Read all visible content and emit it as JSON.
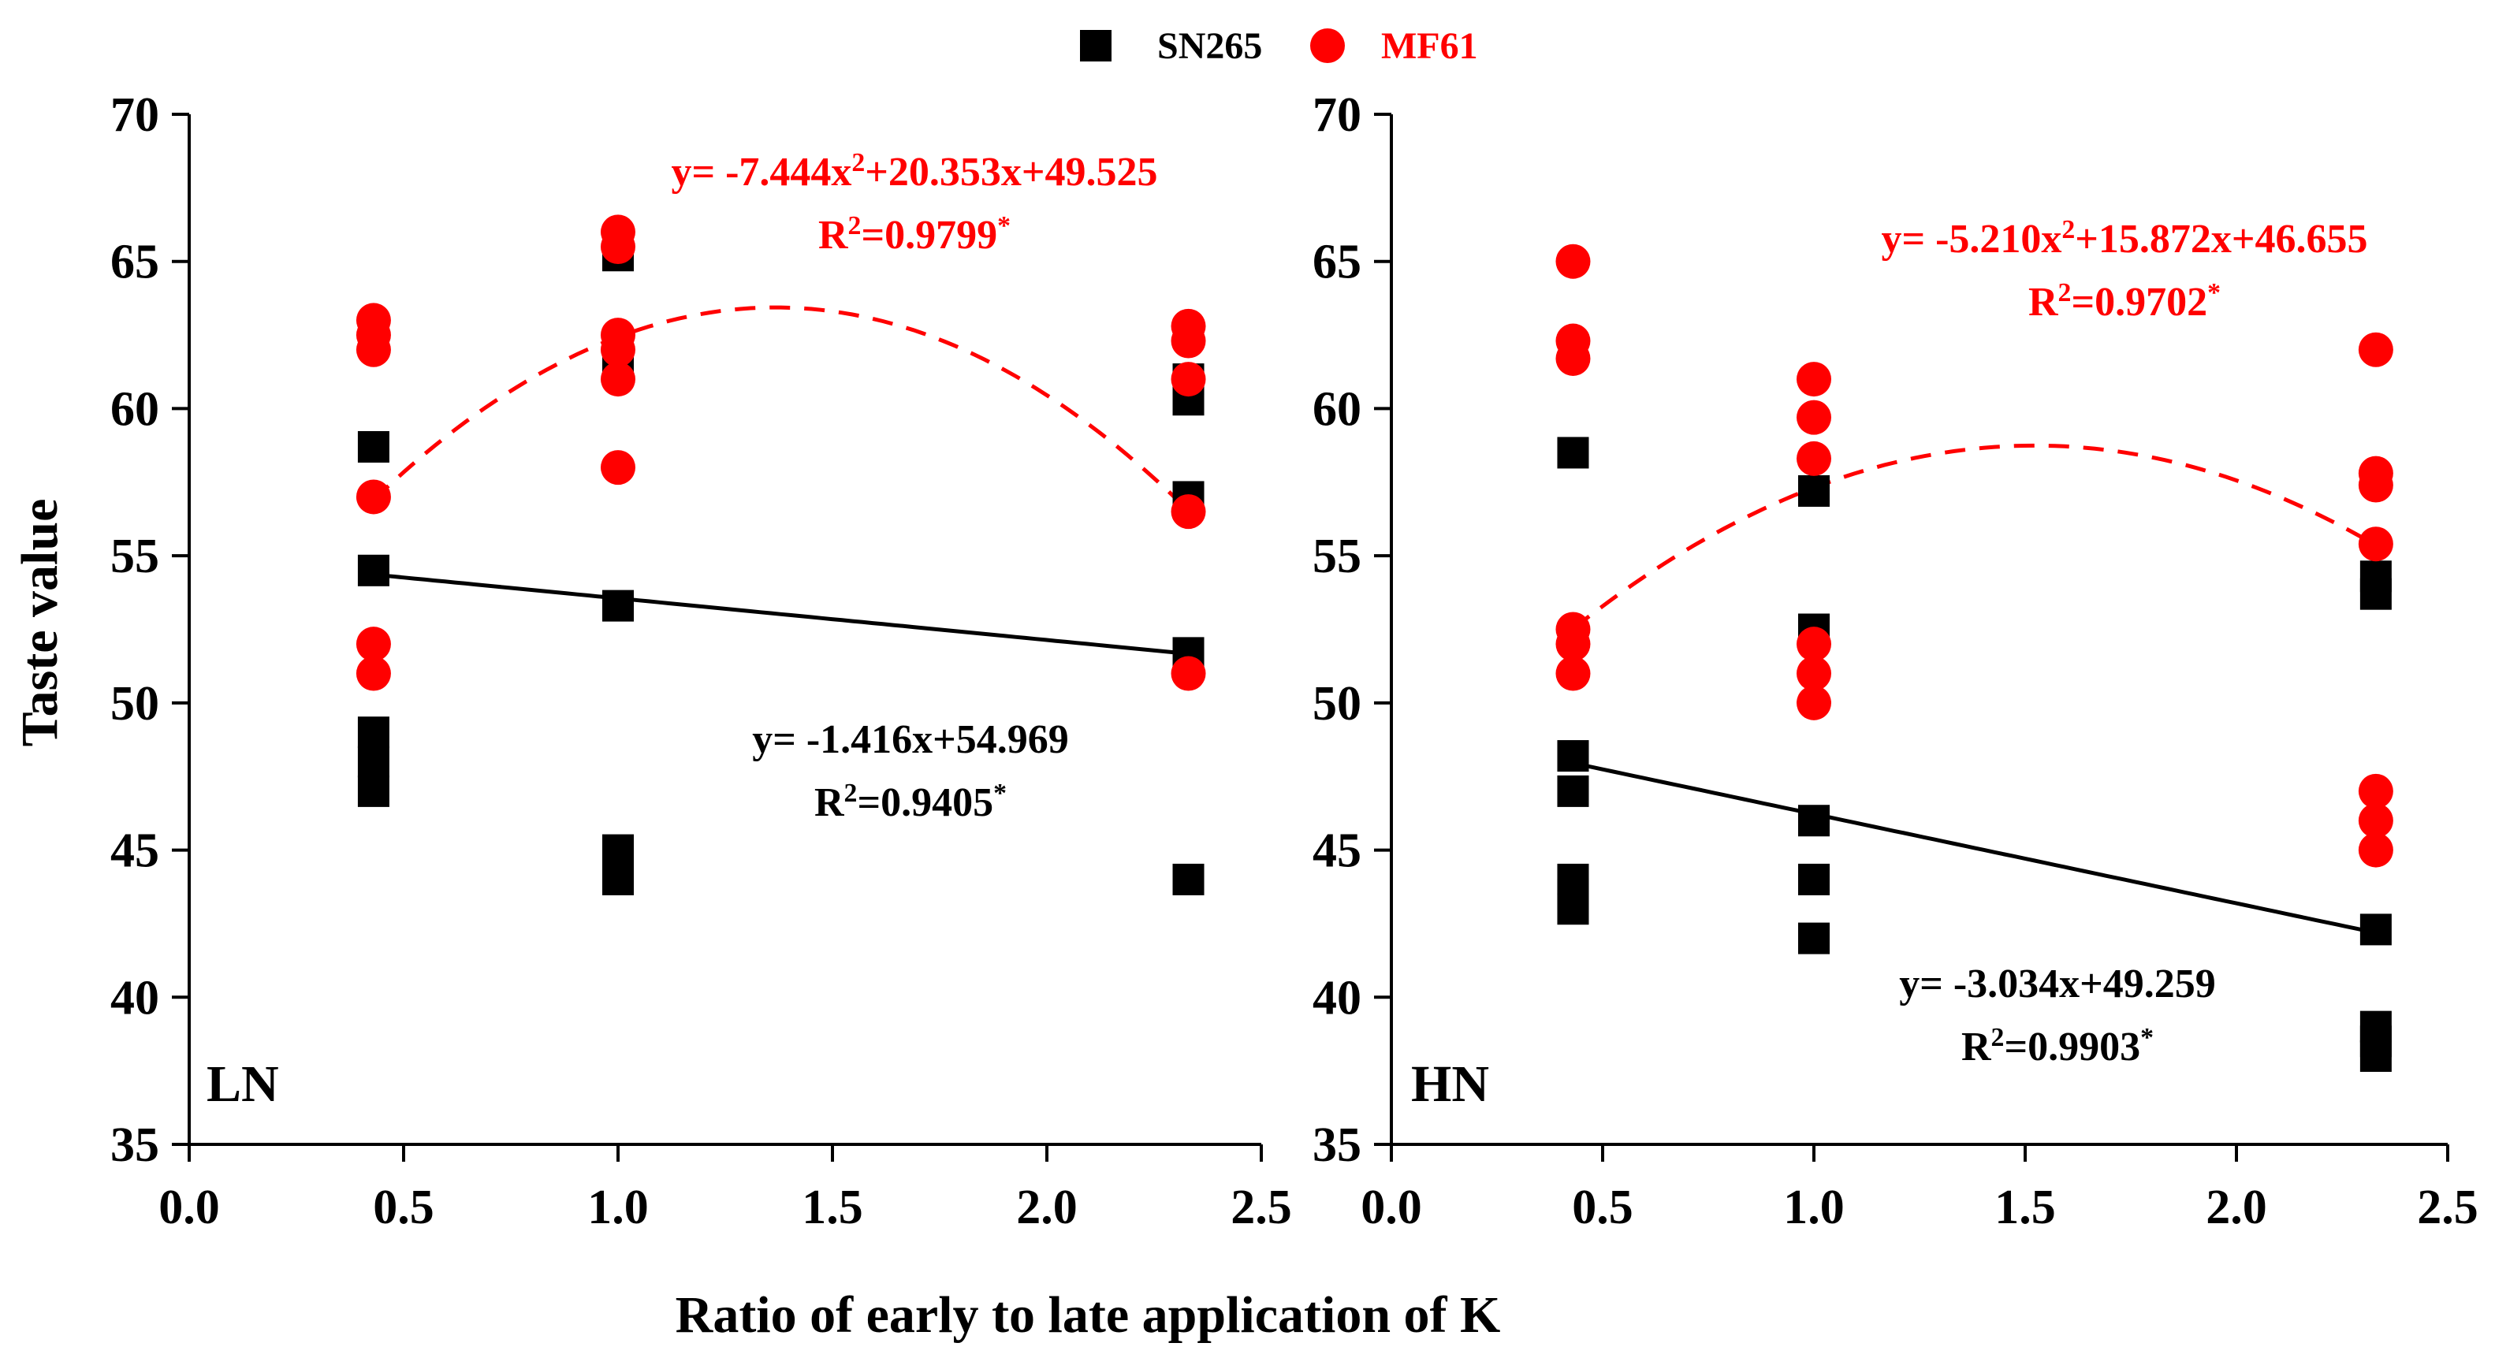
{
  "figure": {
    "xlabel": "Ratio of early to late application of K",
    "ylabel": "Taste value",
    "legend": [
      {
        "name": "SN265",
        "color": "#000000",
        "marker": "square"
      },
      {
        "name": "MF61",
        "color": "#ff0000",
        "marker": "circle"
      }
    ]
  },
  "chart_data": [
    {
      "type": "scatter",
      "panel": "LN",
      "xlim": [
        0.0,
        2.5
      ],
      "ylim": [
        35,
        70
      ],
      "xticks": [
        "0.0",
        "0.5",
        "1.0",
        "1.5",
        "2.0",
        "2.5"
      ],
      "yticks": [
        "35",
        "40",
        "45",
        "50",
        "55",
        "60",
        "65",
        "70"
      ],
      "xlabel": "Ratio of early to late application of K",
      "ylabel": "Taste value",
      "series": [
        {
          "name": "SN265",
          "color": "#000000",
          "marker": "square",
          "points": [
            [
              0.43,
              58.7
            ],
            [
              0.43,
              54.5
            ],
            [
              0.43,
              49.0
            ],
            [
              0.43,
              48.0
            ],
            [
              0.43,
              47.0
            ],
            [
              1.0,
              65.2
            ],
            [
              1.0,
              61.5
            ],
            [
              1.0,
              53.3
            ],
            [
              1.0,
              45.0
            ],
            [
              1.0,
              44.0
            ],
            [
              2.33,
              61.0
            ],
            [
              2.33,
              60.3
            ],
            [
              2.33,
              57.0
            ],
            [
              2.33,
              51.7
            ],
            [
              2.33,
              44.0
            ]
          ],
          "fit": {
            "kind": "linear",
            "coef": [
              54.969,
              -1.416
            ],
            "x_range": [
              0.43,
              2.33
            ],
            "style": "solid"
          },
          "equation": "y= -1.416x+54.969",
          "r2": "R²=0.9405*"
        },
        {
          "name": "MF61",
          "color": "#ff0000",
          "marker": "circle",
          "points": [
            [
              0.43,
              63.0
            ],
            [
              0.43,
              62.5
            ],
            [
              0.43,
              62.0
            ],
            [
              0.43,
              57.0
            ],
            [
              0.43,
              52.0
            ],
            [
              0.43,
              51.0
            ],
            [
              1.0,
              66.0
            ],
            [
              1.0,
              65.5
            ],
            [
              1.0,
              62.5
            ],
            [
              1.0,
              62.0
            ],
            [
              1.0,
              61.0
            ],
            [
              1.0,
              58.0
            ],
            [
              2.33,
              62.8
            ],
            [
              2.33,
              62.3
            ],
            [
              2.33,
              61.0
            ],
            [
              2.33,
              56.5
            ],
            [
              2.33,
              51.0
            ]
          ],
          "fit": {
            "kind": "quadratic",
            "coef": [
              49.525,
              20.353,
              -7.444
            ],
            "x_range": [
              0.43,
              2.33
            ],
            "style": "dashed"
          },
          "equation": "y= -7.444x²+20.353x+49.525",
          "r2": "R²=0.9799*"
        }
      ]
    },
    {
      "type": "scatter",
      "panel": "HN",
      "xlim": [
        0.0,
        2.5
      ],
      "ylim": [
        35,
        70
      ],
      "xticks": [
        "0.0",
        "0.5",
        "1.0",
        "1.5",
        "2.0",
        "2.5"
      ],
      "yticks": [
        "35",
        "40",
        "45",
        "50",
        "55",
        "60",
        "65",
        "70"
      ],
      "xlabel": "Ratio of early to late application of K",
      "ylabel": "",
      "series": [
        {
          "name": "SN265",
          "color": "#000000",
          "marker": "square",
          "points": [
            [
              0.43,
              58.5
            ],
            [
              0.43,
              48.2
            ],
            [
              0.43,
              47.0
            ],
            [
              0.43,
              44.0
            ],
            [
              0.43,
              43.5
            ],
            [
              0.43,
              43.0
            ],
            [
              1.0,
              57.2
            ],
            [
              1.0,
              52.5
            ],
            [
              1.0,
              46.0
            ],
            [
              1.0,
              44.0
            ],
            [
              1.0,
              42.0
            ],
            [
              2.33,
              54.3
            ],
            [
              2.33,
              53.7
            ],
            [
              2.33,
              42.3
            ],
            [
              2.33,
              39.0
            ],
            [
              2.33,
              38.5
            ],
            [
              2.33,
              38.0
            ]
          ],
          "fit": {
            "kind": "linear",
            "coef": [
              49.259,
              -3.034
            ],
            "x_range": [
              0.43,
              2.33
            ],
            "style": "solid"
          },
          "equation": "y= -3.034x+49.259",
          "r2": "R²=0.9903*"
        },
        {
          "name": "MF61",
          "color": "#ff0000",
          "marker": "circle",
          "points": [
            [
              0.43,
              65.0
            ],
            [
              0.43,
              62.3
            ],
            [
              0.43,
              61.7
            ],
            [
              0.43,
              52.5
            ],
            [
              0.43,
              52.0
            ],
            [
              0.43,
              51.0
            ],
            [
              1.0,
              61.0
            ],
            [
              1.0,
              59.7
            ],
            [
              1.0,
              58.3
            ],
            [
              1.0,
              52.0
            ],
            [
              1.0,
              51.0
            ],
            [
              1.0,
              50.0
            ],
            [
              2.33,
              62.0
            ],
            [
              2.33,
              57.8
            ],
            [
              2.33,
              57.4
            ],
            [
              2.33,
              55.4
            ],
            [
              2.33,
              47.0
            ],
            [
              2.33,
              46.0
            ],
            [
              2.33,
              45.0
            ]
          ],
          "fit": {
            "kind": "quadratic",
            "coef": [
              46.655,
              15.872,
              -5.21
            ],
            "x_range": [
              0.43,
              2.33
            ],
            "style": "dashed"
          },
          "equation": "y= -5.210x²+15.872x+46.655",
          "r2": "R²=0.9702*"
        }
      ]
    }
  ]
}
